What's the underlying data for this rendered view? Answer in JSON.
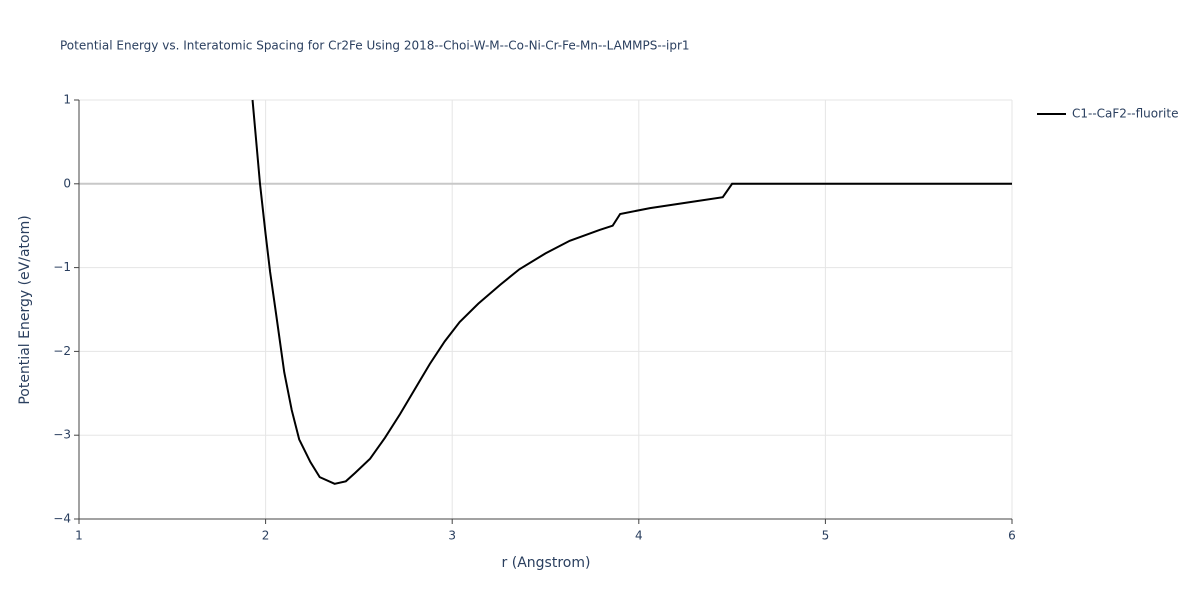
{
  "chart_data": {
    "type": "line",
    "title": "Potential Energy vs. Interatomic Spacing for Cr2Fe Using 2018--Choi-W-M--Co-Ni-Cr-Fe-Mn--LAMMPS--ipr1",
    "x_label": "r (Angstrom)",
    "y_label": "Potential Energy (eV/atom)",
    "x": [
      1.93,
      1.97,
      2.0,
      2.024,
      2.056,
      2.1,
      2.14,
      2.18,
      2.24,
      2.29,
      2.37,
      2.43,
      2.48,
      2.56,
      2.64,
      2.72,
      2.8,
      2.88,
      2.96,
      3.04,
      3.14,
      3.26,
      3.36,
      3.5,
      3.63,
      3.79,
      3.86,
      3.9,
      4.06,
      4.27,
      4.45,
      4.5,
      6.0
    ],
    "series": [
      {
        "name": "C1--CaF2--fluorite",
        "color": "#000000",
        "values": [
          1,
          0,
          -0.6,
          -1.05,
          -1.55,
          -2.25,
          -2.7,
          -3.05,
          -3.32,
          -3.5,
          -3.58,
          -3.55,
          -3.45,
          -3.28,
          -3.03,
          -2.75,
          -2.45,
          -2.15,
          -1.88,
          -1.65,
          -1.43,
          -1.2,
          -1.02,
          -0.83,
          -0.68,
          -0.55,
          -0.5,
          -0.36,
          -0.29,
          -0.22,
          -0.16,
          0,
          0
        ]
      }
    ],
    "xlim": [
      1,
      6
    ],
    "ylim": [
      -4,
      1
    ],
    "xticks": [
      1,
      2,
      3,
      4,
      5,
      6
    ],
    "yticks": [
      {
        "value": -4,
        "label": "−4"
      },
      {
        "value": -3,
        "label": "−3"
      },
      {
        "value": -2,
        "label": "−2"
      },
      {
        "value": -1,
        "label": "−1"
      },
      0,
      1
    ],
    "grid": true,
    "legend": "right"
  }
}
